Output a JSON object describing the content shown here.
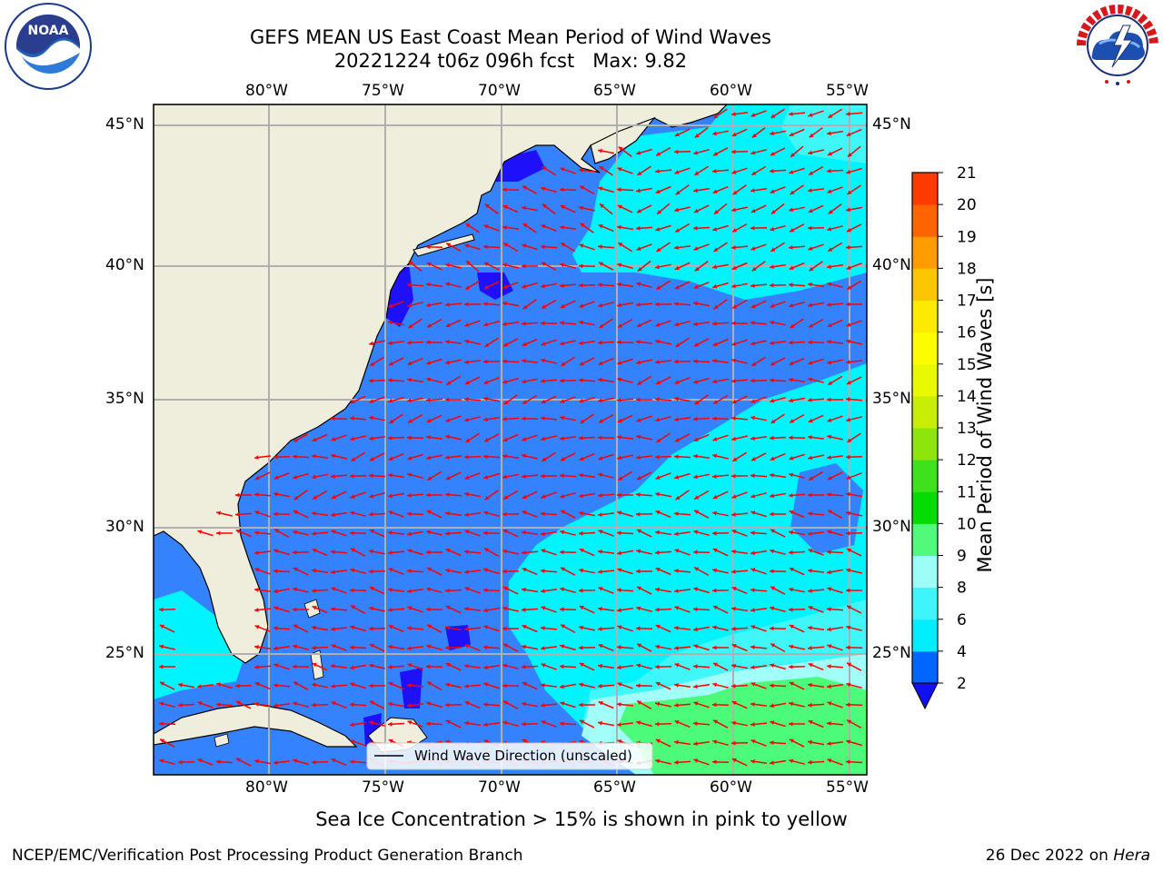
{
  "header": {
    "title_line1": "GEFS MEAN US East Coast Mean Period of Wind Waves",
    "title_line2": "20221224 t06z 096h fcst   Max: 9.82"
  },
  "logos": {
    "left": "NOAA",
    "left_ring_text": "NATIONAL OCEANIC AND ATMOSPHERIC ADMINISTRATION · U.S. DEPARTMENT OF COMMERCE",
    "right_ring_text": "NATIONAL WEATHER SERVICE"
  },
  "map": {
    "lon_labels": [
      "80°W",
      "75°W",
      "70°W",
      "65°W",
      "60°W",
      "55°W"
    ],
    "lat_labels": [
      "45°N",
      "40°N",
      "35°N",
      "30°N",
      "25°N"
    ],
    "legend_label": "Wind Wave Direction (unscaled)",
    "colors": {
      "land": "#efeedd",
      "ocean_2_4": "#3482fe",
      "ocean_0_2": "#1f10fa",
      "ocean_4_6": "#00f4fe",
      "ocean_6_8": "#3ff7f9",
      "ocean_8_9": "#a2fef8",
      "ocean_9_10": "#4cfb7a",
      "arrow": "#ff0000",
      "grid": "#b0b0b0"
    }
  },
  "colorbar": {
    "label": "Mean Period of Wind Waves [s]",
    "ticks": [
      "2",
      "4",
      "6",
      "8",
      "9",
      "10",
      "11",
      "12",
      "13",
      "14",
      "15",
      "16",
      "17",
      "18",
      "19",
      "20",
      "21"
    ],
    "colors": [
      "#0066ff",
      "#00eeff",
      "#3df5fa",
      "#9dfdf7",
      "#52f97a",
      "#04dd04",
      "#3fe11c",
      "#8ee50c",
      "#c8ee05",
      "#e8f902",
      "#fdfd00",
      "#fcea03",
      "#fdc602",
      "#ff9c01",
      "#fe6400",
      "#fe3a00",
      "#ff0000"
    ],
    "extend_color": "#1010f0"
  },
  "caption": "Sea Ice Concentration > 15% is shown in pink to yellow",
  "footer": {
    "left": "NCEP/EMC/Verification Post Processing Product Generation Branch",
    "right_date": "26 Dec 2022 on ",
    "right_host": "Hera"
  }
}
